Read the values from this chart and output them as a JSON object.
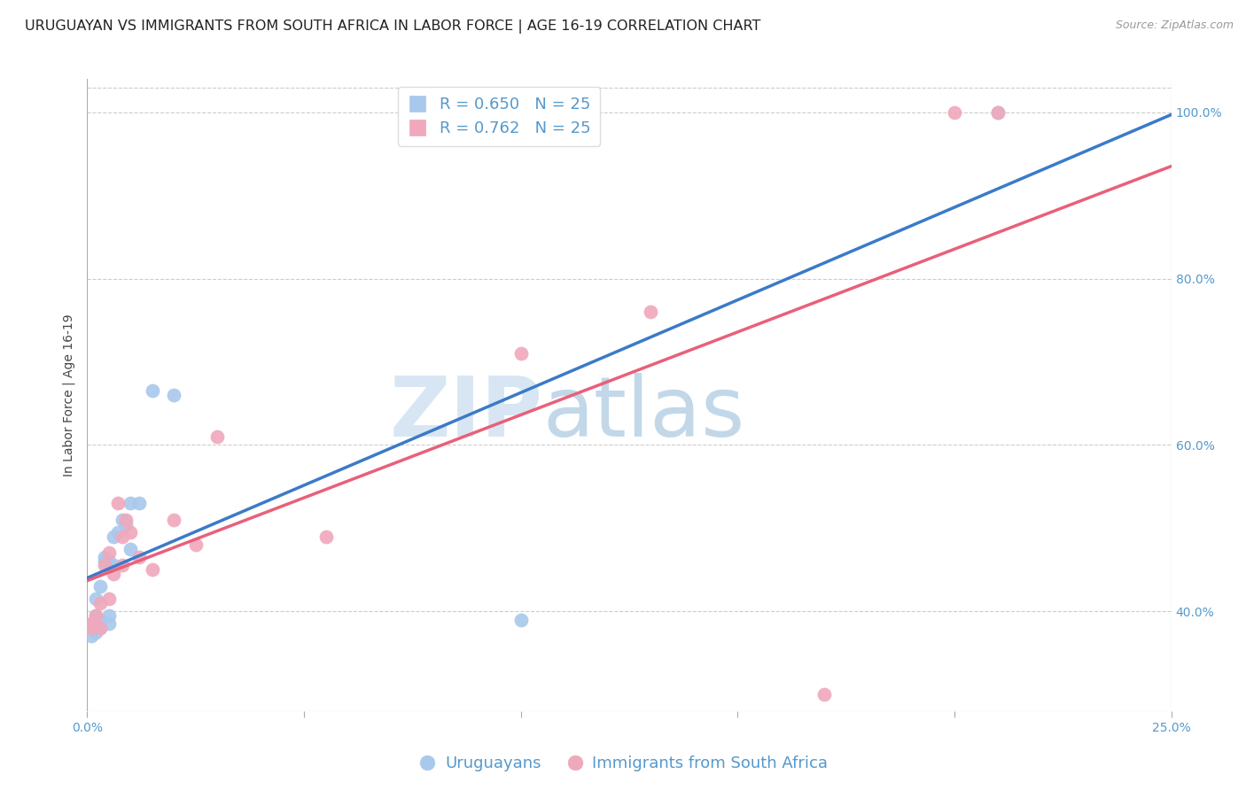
{
  "title": "URUGUAYAN VS IMMIGRANTS FROM SOUTH AFRICA IN LABOR FORCE | AGE 16-19 CORRELATION CHART",
  "source": "Source: ZipAtlas.com",
  "ylabel": "In Labor Force | Age 16-19",
  "watermark_zip": "ZIP",
  "watermark_atlas": "atlas",
  "r_blue": 0.65,
  "n_blue": 25,
  "r_pink": 0.762,
  "n_pink": 25,
  "legend_label_blue": "Uruguayans",
  "legend_label_pink": "Immigrants from South Africa",
  "blue_color": "#A8C8EC",
  "pink_color": "#F0A8BC",
  "blue_line_color": "#3B7AC8",
  "pink_line_color": "#E8607A",
  "xmin": 0.0,
  "xmax": 0.25,
  "ymin": 0.28,
  "ymax": 1.04,
  "yticks_right": [
    0.4,
    0.6,
    0.8,
    1.0
  ],
  "ytick_labels_right": [
    "40.0%",
    "60.0%",
    "80.0%",
    "100.0%"
  ],
  "xticks": [
    0.0,
    0.05,
    0.1,
    0.15,
    0.2,
    0.25
  ],
  "xtick_labels": [
    "0.0%",
    "",
    "",
    "",
    "",
    "25.0%"
  ],
  "blue_x": [
    0.001,
    0.001,
    0.002,
    0.002,
    0.002,
    0.003,
    0.003,
    0.003,
    0.004,
    0.004,
    0.005,
    0.005,
    0.005,
    0.006,
    0.006,
    0.007,
    0.008,
    0.009,
    0.01,
    0.01,
    0.012,
    0.015,
    0.02,
    0.1,
    0.21
  ],
  "blue_y": [
    0.385,
    0.37,
    0.375,
    0.395,
    0.415,
    0.38,
    0.39,
    0.43,
    0.465,
    0.46,
    0.385,
    0.395,
    0.46,
    0.455,
    0.49,
    0.495,
    0.51,
    0.505,
    0.475,
    0.53,
    0.53,
    0.665,
    0.66,
    0.39,
    1.0
  ],
  "pink_x": [
    0.001,
    0.001,
    0.002,
    0.003,
    0.003,
    0.004,
    0.005,
    0.005,
    0.006,
    0.007,
    0.008,
    0.008,
    0.009,
    0.01,
    0.012,
    0.015,
    0.02,
    0.025,
    0.03,
    0.055,
    0.1,
    0.13,
    0.17,
    0.2,
    0.21
  ],
  "pink_y": [
    0.38,
    0.385,
    0.395,
    0.38,
    0.41,
    0.455,
    0.415,
    0.47,
    0.445,
    0.53,
    0.455,
    0.49,
    0.51,
    0.495,
    0.465,
    0.45,
    0.51,
    0.48,
    0.61,
    0.49,
    0.71,
    0.76,
    0.3,
    1.0,
    1.0
  ],
  "background_color": "#FFFFFF",
  "grid_color": "#CCCCCC",
  "axis_color": "#AAAAAA",
  "tick_color": "#5599CC",
  "title_fontsize": 11.5,
  "source_fontsize": 9,
  "label_fontsize": 10,
  "tick_fontsize": 10,
  "legend_fontsize": 13
}
